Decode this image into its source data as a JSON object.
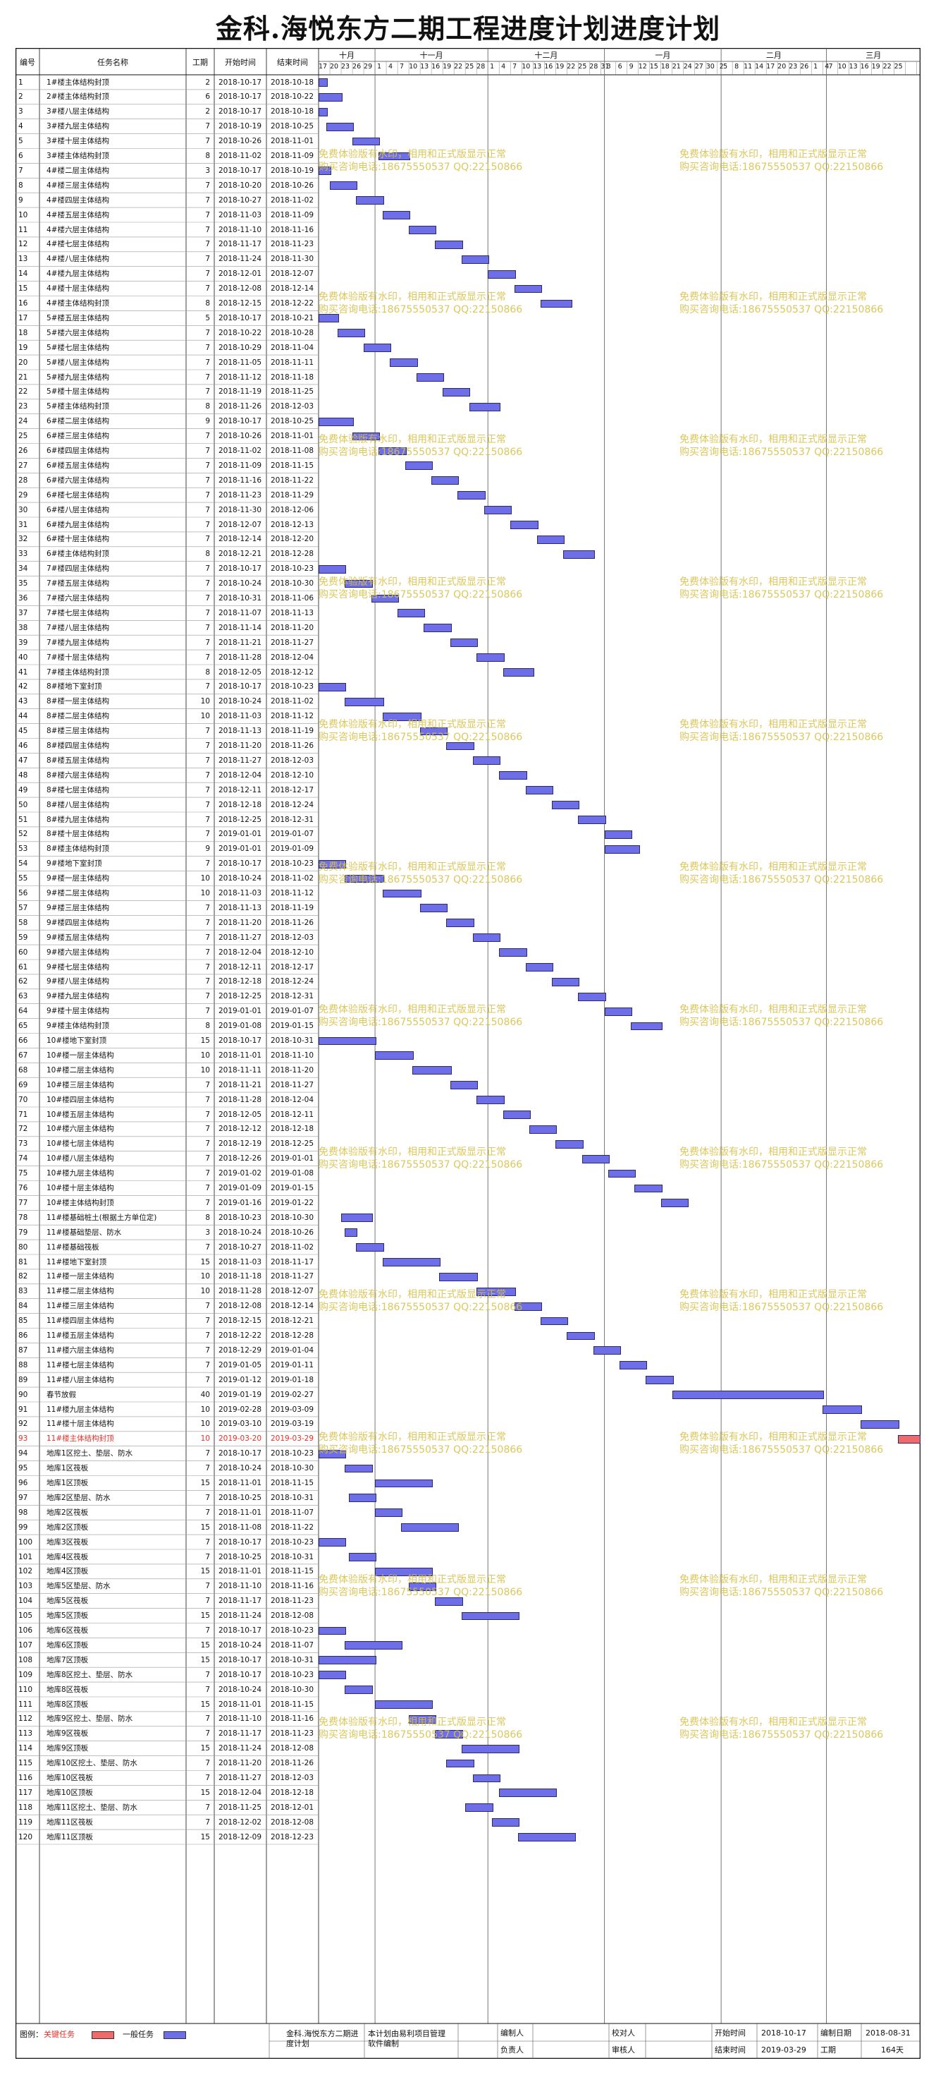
{
  "title": "金科.海悦东方二期工程进度计划进度计划",
  "columns": {
    "id": "编号",
    "name": "任务名称",
    "dur": "工期",
    "start": "开始时间",
    "end": "结束时间"
  },
  "months": [
    "十月",
    "十一月",
    "十二月",
    "一月",
    "二月",
    "三月"
  ],
  "days": [
    17,
    20,
    23,
    26,
    29,
    1,
    4,
    7,
    10,
    13,
    16,
    19,
    22,
    25,
    28,
    1,
    4,
    7,
    10,
    13,
    16,
    19,
    22,
    25,
    28,
    31,
    3,
    6,
    9,
    12,
    15,
    18,
    21,
    24,
    27,
    30,
    2,
    5,
    8,
    11,
    14,
    17,
    20,
    23,
    26,
    1,
    4,
    7,
    10,
    13,
    16,
    19,
    22,
    25
  ],
  "colors": {
    "normal_bar": "#6e6ee8",
    "critical_bar": "#f06a6a",
    "watermark": "#d8c14a",
    "critical_text": "#e8302a"
  },
  "watermark": {
    "line1": "免费体验版有水印，相用和正式版显示正常",
    "line2": "购买咨询电话:18675550537 QQ:22150866"
  },
  "tasks": [
    [
      "1",
      "1#楼主体结构封顶",
      2,
      "2018-10-17",
      "2018-10-18"
    ],
    [
      "2",
      "2#楼主体结构封顶",
      6,
      "2018-10-17",
      "2018-10-22"
    ],
    [
      "3",
      "3#楼八层主体结构",
      2,
      "2018-10-17",
      "2018-10-18"
    ],
    [
      "4",
      "3#楼九层主体结构",
      7,
      "2018-10-19",
      "2018-10-25"
    ],
    [
      "5",
      "3#楼十层主体结构",
      7,
      "2018-10-26",
      "2018-11-01"
    ],
    [
      "6",
      "3#楼主体结构封顶",
      8,
      "2018-11-02",
      "2018-11-09"
    ],
    [
      "7",
      "4#楼二层主体结构",
      3,
      "2018-10-17",
      "2018-10-19"
    ],
    [
      "8",
      "4#楼三层主体结构",
      7,
      "2018-10-20",
      "2018-10-26"
    ],
    [
      "9",
      "4#楼四层主体结构",
      7,
      "2018-10-27",
      "2018-11-02"
    ],
    [
      "10",
      "4#楼五层主体结构",
      7,
      "2018-11-03",
      "2018-11-09"
    ],
    [
      "11",
      "4#楼六层主体结构",
      7,
      "2018-11-10",
      "2018-11-16"
    ],
    [
      "12",
      "4#楼七层主体结构",
      7,
      "2018-11-17",
      "2018-11-23"
    ],
    [
      "13",
      "4#楼八层主体结构",
      7,
      "2018-11-24",
      "2018-11-30"
    ],
    [
      "14",
      "4#楼九层主体结构",
      7,
      "2018-12-01",
      "2018-12-07"
    ],
    [
      "15",
      "4#楼十层主体结构",
      7,
      "2018-12-08",
      "2018-12-14"
    ],
    [
      "16",
      "4#楼主体结构封顶",
      8,
      "2018-12-15",
      "2018-12-22"
    ],
    [
      "17",
      "5#楼五层主体结构",
      5,
      "2018-10-17",
      "2018-10-21"
    ],
    [
      "18",
      "5#楼六层主体结构",
      7,
      "2018-10-22",
      "2018-10-28"
    ],
    [
      "19",
      "5#楼七层主体结构",
      7,
      "2018-10-29",
      "2018-11-04"
    ],
    [
      "20",
      "5#楼八层主体结构",
      7,
      "2018-11-05",
      "2018-11-11"
    ],
    [
      "21",
      "5#楼九层主体结构",
      7,
      "2018-11-12",
      "2018-11-18"
    ],
    [
      "22",
      "5#楼十层主体结构",
      7,
      "2018-11-19",
      "2018-11-25"
    ],
    [
      "23",
      "5#楼主体结构封顶",
      8,
      "2018-11-26",
      "2018-12-03"
    ],
    [
      "24",
      "6#楼二层主体结构",
      9,
      "2018-10-17",
      "2018-10-25"
    ],
    [
      "25",
      "6#楼三层主体结构",
      7,
      "2018-10-26",
      "2018-11-01"
    ],
    [
      "26",
      "6#楼四层主体结构",
      7,
      "2018-11-02",
      "2018-11-08"
    ],
    [
      "27",
      "6#楼五层主体结构",
      7,
      "2018-11-09",
      "2018-11-15"
    ],
    [
      "28",
      "6#楼六层主体结构",
      7,
      "2018-11-16",
      "2018-11-22"
    ],
    [
      "29",
      "6#楼七层主体结构",
      7,
      "2018-11-23",
      "2018-11-29"
    ],
    [
      "30",
      "6#楼八层主体结构",
      7,
      "2018-11-30",
      "2018-12-06"
    ],
    [
      "31",
      "6#楼九层主体结构",
      7,
      "2018-12-07",
      "2018-12-13"
    ],
    [
      "32",
      "6#楼十层主体结构",
      7,
      "2018-12-14",
      "2018-12-20"
    ],
    [
      "33",
      "6#楼主体结构封顶",
      8,
      "2018-12-21",
      "2018-12-28"
    ],
    [
      "34",
      "7#楼四层主体结构",
      7,
      "2018-10-17",
      "2018-10-23"
    ],
    [
      "35",
      "7#楼五层主体结构",
      7,
      "2018-10-24",
      "2018-10-30"
    ],
    [
      "36",
      "7#楼六层主体结构",
      7,
      "2018-10-31",
      "2018-11-06"
    ],
    [
      "37",
      "7#楼七层主体结构",
      7,
      "2018-11-07",
      "2018-11-13"
    ],
    [
      "38",
      "7#楼八层主体结构",
      7,
      "2018-11-14",
      "2018-11-20"
    ],
    [
      "39",
      "7#楼九层主体结构",
      7,
      "2018-11-21",
      "2018-11-27"
    ],
    [
      "40",
      "7#楼十层主体结构",
      7,
      "2018-11-28",
      "2018-12-04"
    ],
    [
      "41",
      "7#楼主体结构封顶",
      8,
      "2018-12-05",
      "2018-12-12"
    ],
    [
      "42",
      "8#楼地下室封顶",
      7,
      "2018-10-17",
      "2018-10-23"
    ],
    [
      "43",
      "8#楼一层主体结构",
      10,
      "2018-10-24",
      "2018-11-02"
    ],
    [
      "44",
      "8#楼二层主体结构",
      10,
      "2018-11-03",
      "2018-11-12"
    ],
    [
      "45",
      "8#楼三层主体结构",
      7,
      "2018-11-13",
      "2018-11-19"
    ],
    [
      "46",
      "8#楼四层主体结构",
      7,
      "2018-11-20",
      "2018-11-26"
    ],
    [
      "47",
      "8#楼五层主体结构",
      7,
      "2018-11-27",
      "2018-12-03"
    ],
    [
      "48",
      "8#楼六层主体结构",
      7,
      "2018-12-04",
      "2018-12-10"
    ],
    [
      "49",
      "8#楼七层主体结构",
      7,
      "2018-12-11",
      "2018-12-17"
    ],
    [
      "50",
      "8#楼八层主体结构",
      7,
      "2018-12-18",
      "2018-12-24"
    ],
    [
      "51",
      "8#楼九层主体结构",
      7,
      "2018-12-25",
      "2018-12-31"
    ],
    [
      "52",
      "8#楼十层主体结构",
      7,
      "2019-01-01",
      "2019-01-07"
    ],
    [
      "53",
      "8#楼主体结构封顶",
      9,
      "2019-01-01",
      "2019-01-09"
    ],
    [
      "54",
      "9#楼地下室封顶",
      7,
      "2018-10-17",
      "2018-10-23"
    ],
    [
      "55",
      "9#楼一层主体结构",
      10,
      "2018-10-24",
      "2018-11-02"
    ],
    [
      "56",
      "9#楼二层主体结构",
      10,
      "2018-11-03",
      "2018-11-12"
    ],
    [
      "57",
      "9#楼三层主体结构",
      7,
      "2018-11-13",
      "2018-11-19"
    ],
    [
      "58",
      "9#楼四层主体结构",
      7,
      "2018-11-20",
      "2018-11-26"
    ],
    [
      "59",
      "9#楼五层主体结构",
      7,
      "2018-11-27",
      "2018-12-03"
    ],
    [
      "60",
      "9#楼六层主体结构",
      7,
      "2018-12-04",
      "2018-12-10"
    ],
    [
      "61",
      "9#楼七层主体结构",
      7,
      "2018-12-11",
      "2018-12-17"
    ],
    [
      "62",
      "9#楼八层主体结构",
      7,
      "2018-12-18",
      "2018-12-24"
    ],
    [
      "63",
      "9#楼九层主体结构",
      7,
      "2018-12-25",
      "2018-12-31"
    ],
    [
      "64",
      "9#楼十层主体结构",
      7,
      "2019-01-01",
      "2019-01-07"
    ],
    [
      "65",
      "9#楼主体结构封顶",
      8,
      "2019-01-08",
      "2019-01-15"
    ],
    [
      "66",
      "10#楼地下室封顶",
      15,
      "2018-10-17",
      "2018-10-31"
    ],
    [
      "67",
      "10#楼一层主体结构",
      10,
      "2018-11-01",
      "2018-11-10"
    ],
    [
      "68",
      "10#楼二层主体结构",
      10,
      "2018-11-11",
      "2018-11-20"
    ],
    [
      "69",
      "10#楼三层主体结构",
      7,
      "2018-11-21",
      "2018-11-27"
    ],
    [
      "70",
      "10#楼四层主体结构",
      7,
      "2018-11-28",
      "2018-12-04"
    ],
    [
      "71",
      "10#楼五层主体结构",
      7,
      "2018-12-05",
      "2018-12-11"
    ],
    [
      "72",
      "10#楼六层主体结构",
      7,
      "2018-12-12",
      "2018-12-18"
    ],
    [
      "73",
      "10#楼七层主体结构",
      7,
      "2018-12-19",
      "2018-12-25"
    ],
    [
      "74",
      "10#楼八层主体结构",
      7,
      "2018-12-26",
      "2019-01-01"
    ],
    [
      "75",
      "10#楼九层主体结构",
      7,
      "2019-01-02",
      "2019-01-08"
    ],
    [
      "76",
      "10#楼十层主体结构",
      7,
      "2019-01-09",
      "2019-01-15"
    ],
    [
      "77",
      "10#楼主体结构封顶",
      7,
      "2019-01-16",
      "2019-01-22"
    ],
    [
      "78",
      "11#楼基础桩土(根据土方单位定)",
      8,
      "2018-10-23",
      "2018-10-30"
    ],
    [
      "79",
      "11#楼基础垫层、防水",
      3,
      "2018-10-24",
      "2018-10-26"
    ],
    [
      "80",
      "11#楼基础筏板",
      7,
      "2018-10-27",
      "2018-11-02"
    ],
    [
      "81",
      "11#楼地下室封顶",
      15,
      "2018-11-03",
      "2018-11-17"
    ],
    [
      "82",
      "11#楼一层主体结构",
      10,
      "2018-11-18",
      "2018-11-27"
    ],
    [
      "83",
      "11#楼二层主体结构",
      10,
      "2018-11-28",
      "2018-12-07"
    ],
    [
      "84",
      "11#楼三层主体结构",
      7,
      "2018-12-08",
      "2018-12-14"
    ],
    [
      "85",
      "11#楼四层主体结构",
      7,
      "2018-12-15",
      "2018-12-21"
    ],
    [
      "86",
      "11#楼五层主体结构",
      7,
      "2018-12-22",
      "2018-12-28"
    ],
    [
      "87",
      "11#楼六层主体结构",
      7,
      "2018-12-29",
      "2019-01-04"
    ],
    [
      "88",
      "11#楼七层主体结构",
      7,
      "2019-01-05",
      "2019-01-11"
    ],
    [
      "89",
      "11#楼八层主体结构",
      7,
      "2019-01-12",
      "2019-01-18"
    ],
    [
      "90",
      "春节放假",
      40,
      "2019-01-19",
      "2019-02-27"
    ],
    [
      "91",
      "11#楼九层主体结构",
      10,
      "2019-02-28",
      "2019-03-09"
    ],
    [
      "92",
      "11#楼十层主体结构",
      10,
      "2019-03-10",
      "2019-03-19"
    ],
    [
      "93",
      "11#楼主体结构封顶",
      10,
      "2019-03-20",
      "2019-03-29"
    ],
    [
      "94",
      "地库1区挖土、垫层、防水",
      7,
      "2018-10-17",
      "2018-10-23"
    ],
    [
      "95",
      "地库1区筏板",
      7,
      "2018-10-24",
      "2018-10-30"
    ],
    [
      "96",
      "地库1区顶板",
      15,
      "2018-11-01",
      "2018-11-15"
    ],
    [
      "97",
      "地库2区垫层、防水",
      7,
      "2018-10-25",
      "2018-10-31"
    ],
    [
      "98",
      "地库2区筏板",
      7,
      "2018-11-01",
      "2018-11-07"
    ],
    [
      "99",
      "地库2区顶板",
      15,
      "2018-11-08",
      "2018-11-22"
    ],
    [
      "100",
      "地库3区筏板",
      7,
      "2018-10-17",
      "2018-10-23"
    ],
    [
      "101",
      "地库4区筏板",
      7,
      "2018-10-25",
      "2018-10-31"
    ],
    [
      "102",
      "地库4区顶板",
      15,
      "2018-11-01",
      "2018-11-15"
    ],
    [
      "103",
      "地库5区垫层、防水",
      7,
      "2018-11-10",
      "2018-11-16"
    ],
    [
      "104",
      "地库5区筏板",
      7,
      "2018-11-17",
      "2018-11-23"
    ],
    [
      "105",
      "地库5区顶板",
      15,
      "2018-11-24",
      "2018-12-08"
    ],
    [
      "106",
      "地库6区筏板",
      7,
      "2018-10-17",
      "2018-10-23"
    ],
    [
      "107",
      "地库6区顶板",
      15,
      "2018-10-24",
      "2018-11-07"
    ],
    [
      "108",
      "地库7区顶板",
      15,
      "2018-10-17",
      "2018-10-31"
    ],
    [
      "109",
      "地库8区挖土、垫层、防水",
      7,
      "2018-10-17",
      "2018-10-23"
    ],
    [
      "110",
      "地库8区筏板",
      7,
      "2018-10-24",
      "2018-10-30"
    ],
    [
      "111",
      "地库8区顶板",
      15,
      "2018-11-01",
      "2018-11-15"
    ],
    [
      "112",
      "地库9区挖土、垫层、防水",
      7,
      "2018-11-10",
      "2018-11-16"
    ],
    [
      "113",
      "地库9区筏板",
      7,
      "2018-11-17",
      "2018-11-23"
    ],
    [
      "114",
      "地库9区顶板",
      15,
      "2018-11-24",
      "2018-12-08"
    ],
    [
      "115",
      "地库10区挖土、垫层、防水",
      7,
      "2018-11-20",
      "2018-11-26"
    ],
    [
      "116",
      "地库10区筏板",
      7,
      "2018-11-27",
      "2018-12-03"
    ],
    [
      "117",
      "地库10区顶板",
      15,
      "2018-12-04",
      "2018-12-18"
    ],
    [
      "118",
      "地库11区挖土、垫层、防水",
      7,
      "2018-11-25",
      "2018-12-01"
    ],
    [
      "119",
      "地库11区筏板",
      7,
      "2018-12-02",
      "2018-12-08"
    ],
    [
      "120",
      "地库11区顶板",
      15,
      "2018-12-09",
      "2018-12-23"
    ]
  ],
  "critical_ids": [
    "93"
  ],
  "legend": {
    "label": "图例：",
    "critical": "关键任务",
    "normal": "一般任务"
  },
  "footer": {
    "project_name": "金科.海悦东方二期进度计划",
    "note": "本计划由易利项目管理软件编制",
    "compiler_label": "编制人",
    "compiler": "",
    "checker_label": "校对人",
    "checker": "",
    "owner_label": "负责人",
    "owner": "",
    "reviewer_label": "审核人",
    "reviewer": "",
    "start_label": "开始时间",
    "start": "2018-10-17",
    "end_label": "结束时间",
    "end": "2019-03-29",
    "made_label": "编制日期",
    "made": "2018-08-31",
    "dur_label": "工期",
    "dur": "164天"
  }
}
